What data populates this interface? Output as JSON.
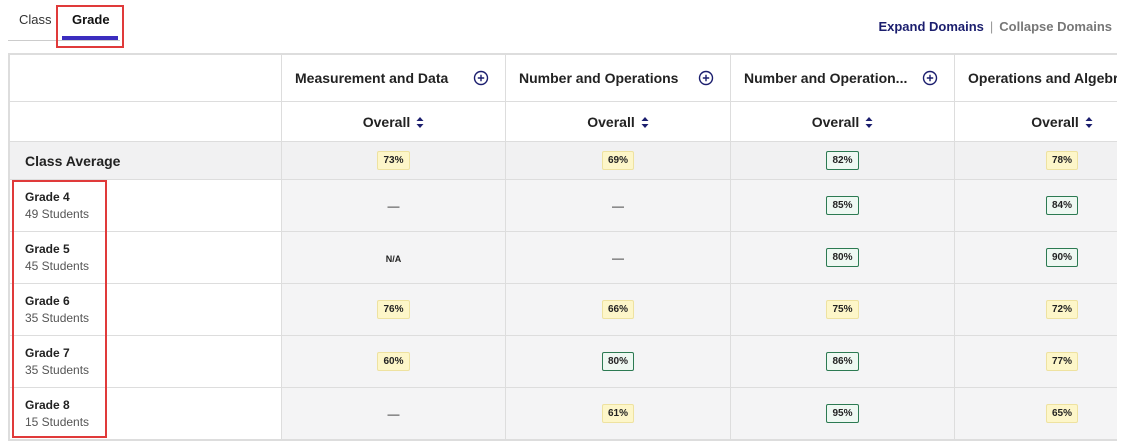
{
  "tabs": [
    "Class",
    "Grade"
  ],
  "links": {
    "expand": "Expand Domains",
    "separator": "|",
    "collapse": "Collapse Domains"
  },
  "table": {
    "columns": [
      {
        "title": "Measurement and Data",
        "sub": "Overall"
      },
      {
        "title": "Number and Operations",
        "sub": "Overall"
      },
      {
        "title": "Number and Operation...",
        "sub": "Overall"
      },
      {
        "title": "Operations and Algebr",
        "sub": "Overall"
      }
    ],
    "class_average": {
      "label": "Class Average",
      "cells": [
        {
          "text": "73%",
          "badge": "yellow"
        },
        {
          "text": "69%",
          "badge": "yellow"
        },
        {
          "text": "82%",
          "badge": "green"
        },
        {
          "text": "78%",
          "badge": "yellow"
        }
      ]
    },
    "rows": [
      {
        "grade": "Grade 4",
        "students": "49 Students",
        "cells": [
          {
            "text": "—"
          },
          {
            "text": "—"
          },
          {
            "text": "85%",
            "badge": "green"
          },
          {
            "text": "84%",
            "badge": "green"
          }
        ]
      },
      {
        "grade": "Grade 5",
        "students": "45 Students",
        "cells": [
          {
            "text": "N/A"
          },
          {
            "text": "—"
          },
          {
            "text": "80%",
            "badge": "green"
          },
          {
            "text": "90%",
            "badge": "green"
          }
        ]
      },
      {
        "grade": "Grade 6",
        "students": "35 Students",
        "cells": [
          {
            "text": "76%",
            "badge": "yellow"
          },
          {
            "text": "66%",
            "badge": "yellow"
          },
          {
            "text": "75%",
            "badge": "yellow"
          },
          {
            "text": "72%",
            "badge": "yellow"
          }
        ]
      },
      {
        "grade": "Grade 7",
        "students": "35 Students",
        "cells": [
          {
            "text": "60%",
            "badge": "yellow"
          },
          {
            "text": "80%",
            "badge": "green"
          },
          {
            "text": "86%",
            "badge": "green"
          },
          {
            "text": "77%",
            "badge": "yellow"
          }
        ]
      },
      {
        "grade": "Grade 8",
        "students": "15 Students",
        "cells": [
          {
            "text": "—"
          },
          {
            "text": "61%",
            "badge": "yellow"
          },
          {
            "text": "95%",
            "badge": "green"
          },
          {
            "text": "65%",
            "badge": "yellow"
          }
        ]
      }
    ]
  }
}
